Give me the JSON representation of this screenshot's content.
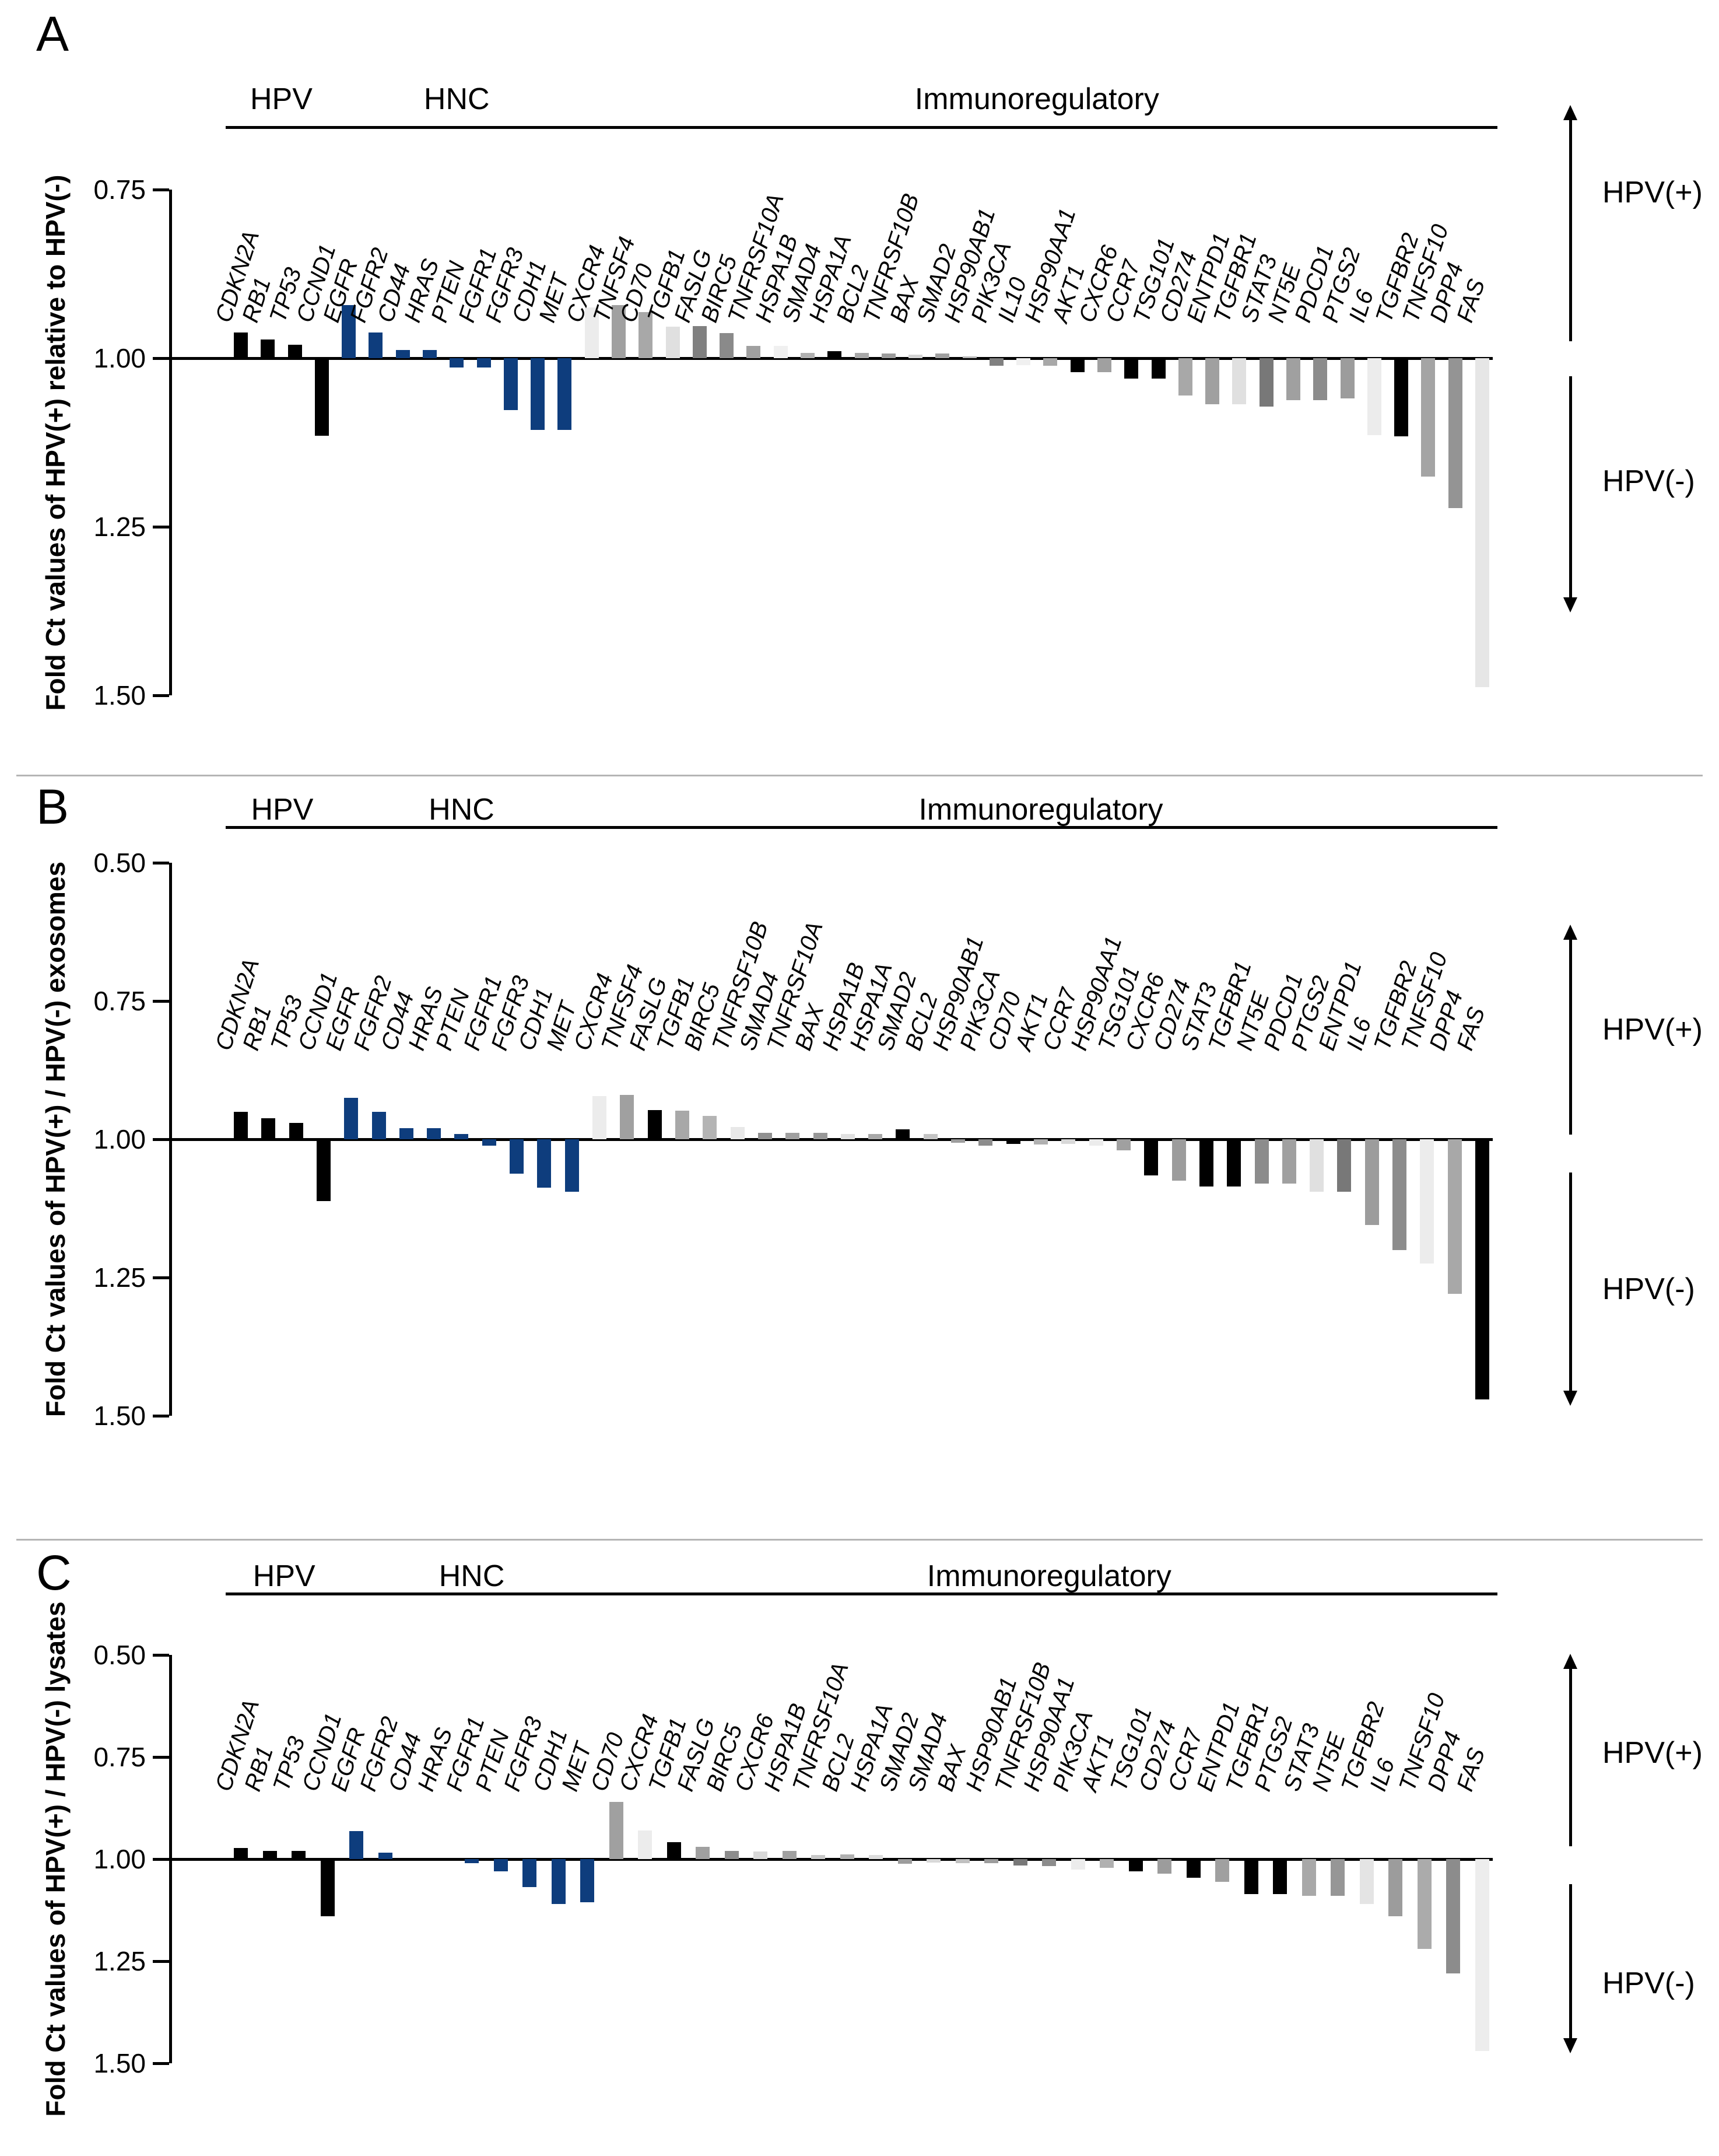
{
  "page": {
    "background": "#ffffff"
  },
  "chart_data": [
    {
      "type": "bar",
      "panel_label": "A",
      "ylabel": "Fold Ct values of HPV(+) relative to HPV(-)",
      "axis_min": 0.75,
      "axis_max": 1.5,
      "baseline": 1.0,
      "inverted_axis": true,
      "grid": false,
      "yticks": [
        "0.75",
        "1.00",
        "1.25",
        "1.50"
      ],
      "ytick_values": [
        0.75,
        1.0,
        1.25,
        1.5
      ],
      "up_label": "HPV(+)",
      "down_label": "HPV(-)",
      "groups": [
        {
          "label": "HPV",
          "from": 0,
          "to": 3
        },
        {
          "label": "HNC",
          "from": 4,
          "to": 12
        },
        {
          "label": "Immunoregulatory",
          "from": 13,
          "to": 46
        }
      ],
      "genes": [
        {
          "name": "CDKN2A",
          "value": 0.962,
          "color": "#000000"
        },
        {
          "name": "RB1",
          "value": 0.972,
          "color": "#000000"
        },
        {
          "name": "TP53",
          "value": 0.98,
          "color": "#000000"
        },
        {
          "name": "CCND1",
          "value": 1.115,
          "color": "#000000"
        },
        {
          "name": "EGFR",
          "value": 0.921,
          "color": "#0e3d7d"
        },
        {
          "name": "FGFR2",
          "value": 0.962,
          "color": "#0e3d7d"
        },
        {
          "name": "CD44",
          "value": 0.988,
          "color": "#0e3d7d"
        },
        {
          "name": "HRAS",
          "value": 0.988,
          "color": "#0e3d7d"
        },
        {
          "name": "PTEN",
          "value": 1.014,
          "color": "#0e3d7d"
        },
        {
          "name": "FGFR1",
          "value": 1.014,
          "color": "#0e3d7d"
        },
        {
          "name": "FGFR3",
          "value": 1.077,
          "color": "#0e3d7d"
        },
        {
          "name": "CDH1",
          "value": 1.106,
          "color": "#0e3d7d"
        },
        {
          "name": "MET",
          "value": 1.106,
          "color": "#0e3d7d"
        },
        {
          "name": "CXCR4",
          "value": 0.925,
          "color": "#ececec"
        },
        {
          "name": "TNFSF4",
          "value": 0.921,
          "color": "#a0a0a0"
        },
        {
          "name": "CD70",
          "value": 0.932,
          "color": "#a8a8a8"
        },
        {
          "name": "TGFB1",
          "value": 0.953,
          "color": "#e0e0e0"
        },
        {
          "name": "FASLG",
          "value": 0.952,
          "color": "#808080"
        },
        {
          "name": "BIRC5",
          "value": 0.963,
          "color": "#8a8a8a"
        },
        {
          "name": "TNFRSF10A",
          "value": 0.982,
          "color": "#a0a0a0"
        },
        {
          "name": "HSPA1B",
          "value": 0.982,
          "color": "#f0f0f0"
        },
        {
          "name": "SMAD4",
          "value": 0.992,
          "color": "#b0b0b0"
        },
        {
          "name": "HSPA1A",
          "value": 0.99,
          "color": "#000000"
        },
        {
          "name": "BCL2",
          "value": 0.992,
          "color": "#a8a8a8"
        },
        {
          "name": "TNFRSF10B",
          "value": 0.993,
          "color": "#9c9c9c"
        },
        {
          "name": "BAX",
          "value": 0.995,
          "color": "#d4d4d4"
        },
        {
          "name": "SMAD2",
          "value": 0.993,
          "color": "#a0a0a0"
        },
        {
          "name": "HSP90AB1",
          "value": 0.997,
          "color": "#b8b8b8"
        },
        {
          "name": "PIK3CA",
          "value": 1.011,
          "color": "#808080"
        },
        {
          "name": "IL10",
          "value": 1.01,
          "color": "#f0f0f0"
        },
        {
          "name": "HSP90AA1",
          "value": 1.011,
          "color": "#a8a8a8"
        },
        {
          "name": "AKT1",
          "value": 1.021,
          "color": "#000000"
        },
        {
          "name": "CXCR6",
          "value": 1.021,
          "color": "#a0a0a0"
        },
        {
          "name": "CCR7",
          "value": 1.03,
          "color": "#000000"
        },
        {
          "name": "TSG101",
          "value": 1.03,
          "color": "#000000"
        },
        {
          "name": "CD274",
          "value": 1.055,
          "color": "#a8a8a8"
        },
        {
          "name": "ENTPD1",
          "value": 1.068,
          "color": "#a0a0a0"
        },
        {
          "name": "TGFBR1",
          "value": 1.068,
          "color": "#e0e0e0"
        },
        {
          "name": "STAT3",
          "value": 1.072,
          "color": "#787878"
        },
        {
          "name": "NT5E",
          "value": 1.062,
          "color": "#a0a0a0"
        },
        {
          "name": "PDCD1",
          "value": 1.062,
          "color": "#8c8c8c"
        },
        {
          "name": "PTGS2",
          "value": 1.06,
          "color": "#9c9c9c"
        },
        {
          "name": "IL6",
          "value": 1.114,
          "color": "#ececec"
        },
        {
          "name": "TGFBR2",
          "value": 1.116,
          "color": "#000000"
        },
        {
          "name": "TNFSF10",
          "value": 1.176,
          "color": "#a4a4a4"
        },
        {
          "name": "DPP4",
          "value": 1.222,
          "color": "#949494"
        },
        {
          "name": "FAS",
          "value": 1.488,
          "color": "#e6e6e6"
        }
      ]
    },
    {
      "type": "bar",
      "panel_label": "B",
      "ylabel": "Fold Ct values of HPV(+) / HPV(-) exosomes",
      "axis_min": 0.5,
      "axis_max": 1.5,
      "baseline": 1.0,
      "inverted_axis": true,
      "grid": false,
      "yticks": [
        "0.50",
        "0.75",
        "1.00",
        "1.25",
        "1.50"
      ],
      "ytick_values": [
        0.5,
        0.75,
        1.0,
        1.25,
        1.5
      ],
      "up_label": "HPV(+)",
      "down_label": "HPV(-)",
      "groups": [
        {
          "label": "HPV",
          "from": 0,
          "to": 3
        },
        {
          "label": "HNC",
          "from": 4,
          "to": 12
        },
        {
          "label": "Immunoregulatory",
          "from": 13,
          "to": 45
        }
      ],
      "genes": [
        {
          "name": "CDKN2A",
          "value": 0.95,
          "color": "#000000"
        },
        {
          "name": "RB1",
          "value": 0.962,
          "color": "#000000"
        },
        {
          "name": "TP53",
          "value": 0.97,
          "color": "#000000"
        },
        {
          "name": "CCND1",
          "value": 1.112,
          "color": "#000000"
        },
        {
          "name": "EGFR",
          "value": 0.925,
          "color": "#0e3d7d"
        },
        {
          "name": "FGFR2",
          "value": 0.95,
          "color": "#0e3d7d"
        },
        {
          "name": "CD44",
          "value": 0.98,
          "color": "#0e3d7d"
        },
        {
          "name": "HRAS",
          "value": 0.98,
          "color": "#0e3d7d"
        },
        {
          "name": "PTEN",
          "value": 0.99,
          "color": "#0e3d7d"
        },
        {
          "name": "FGFR1",
          "value": 1.012,
          "color": "#0e3d7d"
        },
        {
          "name": "FGFR3",
          "value": 1.062,
          "color": "#0e3d7d"
        },
        {
          "name": "CDH1",
          "value": 1.088,
          "color": "#0e3d7d"
        },
        {
          "name": "MET",
          "value": 1.095,
          "color": "#0e3d7d"
        },
        {
          "name": "CXCR4",
          "value": 0.922,
          "color": "#ececec"
        },
        {
          "name": "TNFSF4",
          "value": 0.92,
          "color": "#a0a0a0"
        },
        {
          "name": "FASLG",
          "value": 0.947,
          "color": "#000000"
        },
        {
          "name": "TGFB1",
          "value": 0.948,
          "color": "#a8a8a8"
        },
        {
          "name": "BIRC5",
          "value": 0.958,
          "color": "#b4b4b4"
        },
        {
          "name": "TNFRSF10B",
          "value": 0.978,
          "color": "#e8e8e8"
        },
        {
          "name": "SMAD4",
          "value": 0.988,
          "color": "#909090"
        },
        {
          "name": "TNFRSF10A",
          "value": 0.988,
          "color": "#a0a0a0"
        },
        {
          "name": "BAX",
          "value": 0.988,
          "color": "#989898"
        },
        {
          "name": "HSPA1B",
          "value": 0.99,
          "color": "#e0e0e0"
        },
        {
          "name": "HSPA1A",
          "value": 0.99,
          "color": "#a8a8a8"
        },
        {
          "name": "SMAD2",
          "value": 0.982,
          "color": "#000000"
        },
        {
          "name": "BCL2",
          "value": 0.991,
          "color": "#c4c4c4"
        },
        {
          "name": "HSP90AB1",
          "value": 1.006,
          "color": "#9c9c9c"
        },
        {
          "name": "PIK3CA",
          "value": 1.012,
          "color": "#8c8c8c"
        },
        {
          "name": "CD70",
          "value": 1.008,
          "color": "#000000"
        },
        {
          "name": "AKT1",
          "value": 1.01,
          "color": "#b0b0b0"
        },
        {
          "name": "CCR7",
          "value": 1.008,
          "color": "#d8d8d8"
        },
        {
          "name": "HSP90AA1",
          "value": 1.012,
          "color": "#ececec"
        },
        {
          "name": "TSG101",
          "value": 1.02,
          "color": "#a0a0a0"
        },
        {
          "name": "CXCR6",
          "value": 1.065,
          "color": "#000000"
        },
        {
          "name": "CD274",
          "value": 1.075,
          "color": "#9c9c9c"
        },
        {
          "name": "STAT3",
          "value": 1.085,
          "color": "#000000"
        },
        {
          "name": "TGFBR1",
          "value": 1.085,
          "color": "#000000"
        },
        {
          "name": "NT5E",
          "value": 1.08,
          "color": "#8c8c8c"
        },
        {
          "name": "PDCD1",
          "value": 1.08,
          "color": "#a0a0a0"
        },
        {
          "name": "PTGS2",
          "value": 1.095,
          "color": "#e0e0e0"
        },
        {
          "name": "ENTPD1",
          "value": 1.095,
          "color": "#787878"
        },
        {
          "name": "IL6",
          "value": 1.155,
          "color": "#9c9c9c"
        },
        {
          "name": "TGFBR2",
          "value": 1.2,
          "color": "#8c8c8c"
        },
        {
          "name": "TNFSF10",
          "value": 1.225,
          "color": "#ececec"
        },
        {
          "name": "DPP4",
          "value": 1.28,
          "color": "#a8a8a8"
        },
        {
          "name": "FAS",
          "value": 1.47,
          "color": "#000000"
        }
      ]
    },
    {
      "type": "bar",
      "panel_label": "C",
      "ylabel": "Fold Ct values of HPV(+) / HPV(-) lysates",
      "axis_min": 0.5,
      "axis_max": 1.5,
      "baseline": 1.0,
      "inverted_axis": true,
      "grid": false,
      "yticks": [
        "0.50",
        "0.75",
        "1.00",
        "1.25",
        "1.50"
      ],
      "ytick_values": [
        0.5,
        0.75,
        1.0,
        1.25,
        1.5
      ],
      "up_label": "HPV(+)",
      "down_label": "HPV(-)",
      "groups": [
        {
          "label": "HPV",
          "from": 0,
          "to": 3
        },
        {
          "label": "HNC",
          "from": 4,
          "to": 12
        },
        {
          "label": "Immunoregulatory",
          "from": 13,
          "to": 43
        }
      ],
      "genes": [
        {
          "name": "CDKN2A",
          "value": 0.973,
          "color": "#000000"
        },
        {
          "name": "RB1",
          "value": 0.98,
          "color": "#000000"
        },
        {
          "name": "TP53",
          "value": 0.98,
          "color": "#000000"
        },
        {
          "name": "CCND1",
          "value": 1.14,
          "color": "#000000"
        },
        {
          "name": "EGFR",
          "value": 0.931,
          "color": "#0e3d7d"
        },
        {
          "name": "FGFR2",
          "value": 0.984,
          "color": "#0e3d7d"
        },
        {
          "name": "CD44",
          "value": 1.0,
          "color": "#0e3d7d"
        },
        {
          "name": "HRAS",
          "value": 1.0,
          "color": "#0e3d7d"
        },
        {
          "name": "FGFR1",
          "value": 1.01,
          "color": "#0e3d7d"
        },
        {
          "name": "PTEN",
          "value": 1.03,
          "color": "#0e3d7d"
        },
        {
          "name": "FGFR3",
          "value": 1.068,
          "color": "#0e3d7d"
        },
        {
          "name": "CDH1",
          "value": 1.11,
          "color": "#0e3d7d"
        },
        {
          "name": "MET",
          "value": 1.105,
          "color": "#0e3d7d"
        },
        {
          "name": "CD70",
          "value": 0.86,
          "color": "#a0a0a0"
        },
        {
          "name": "CXCR4",
          "value": 0.93,
          "color": "#ececec"
        },
        {
          "name": "TGFB1",
          "value": 0.958,
          "color": "#000000"
        },
        {
          "name": "FASLG",
          "value": 0.97,
          "color": "#a0a0a0"
        },
        {
          "name": "BIRC5",
          "value": 0.98,
          "color": "#8c8c8c"
        },
        {
          "name": "CXCR6",
          "value": 0.982,
          "color": "#d8d8d8"
        },
        {
          "name": "HSPA1B",
          "value": 0.98,
          "color": "#a0a0a0"
        },
        {
          "name": "TNFRSF10A",
          "value": 0.99,
          "color": "#c8c8c8"
        },
        {
          "name": "BCL2",
          "value": 0.988,
          "color": "#b0b0b0"
        },
        {
          "name": "HSPA1A",
          "value": 0.99,
          "color": "#dcdcdc"
        },
        {
          "name": "SMAD2",
          "value": 1.012,
          "color": "#9c9c9c"
        },
        {
          "name": "SMAD4",
          "value": 1.008,
          "color": "#d8d8d8"
        },
        {
          "name": "BAX",
          "value": 1.01,
          "color": "#c0c0c0"
        },
        {
          "name": "HSP90AB1",
          "value": 1.01,
          "color": "#9c9c9c"
        },
        {
          "name": "TNFRSF10B",
          "value": 1.015,
          "color": "#787878"
        },
        {
          "name": "HSP90AA1",
          "value": 1.017,
          "color": "#8c8c8c"
        },
        {
          "name": "PIK3CA",
          "value": 1.025,
          "color": "#ececec"
        },
        {
          "name": "AKT1",
          "value": 1.022,
          "color": "#b0b0b0"
        },
        {
          "name": "TSG101",
          "value": 1.03,
          "color": "#000000"
        },
        {
          "name": "CD274",
          "value": 1.035,
          "color": "#9c9c9c"
        },
        {
          "name": "CCR7",
          "value": 1.045,
          "color": "#000000"
        },
        {
          "name": "ENTPD1",
          "value": 1.055,
          "color": "#a0a0a0"
        },
        {
          "name": "TGFBR1",
          "value": 1.085,
          "color": "#000000"
        },
        {
          "name": "PTGS2",
          "value": 1.085,
          "color": "#000000"
        },
        {
          "name": "STAT3",
          "value": 1.09,
          "color": "#a8a8a8"
        },
        {
          "name": "NT5E",
          "value": 1.09,
          "color": "#969696"
        },
        {
          "name": "TGFBR2",
          "value": 1.11,
          "color": "#e4e4e4"
        },
        {
          "name": "IL6",
          "value": 1.14,
          "color": "#9c9c9c"
        },
        {
          "name": "TNFSF10",
          "value": 1.22,
          "color": "#ababab"
        },
        {
          "name": "DPP4",
          "value": 1.28,
          "color": "#8c8c8c"
        },
        {
          "name": "FAS",
          "value": 1.47,
          "color": "#ededed"
        }
      ]
    }
  ]
}
